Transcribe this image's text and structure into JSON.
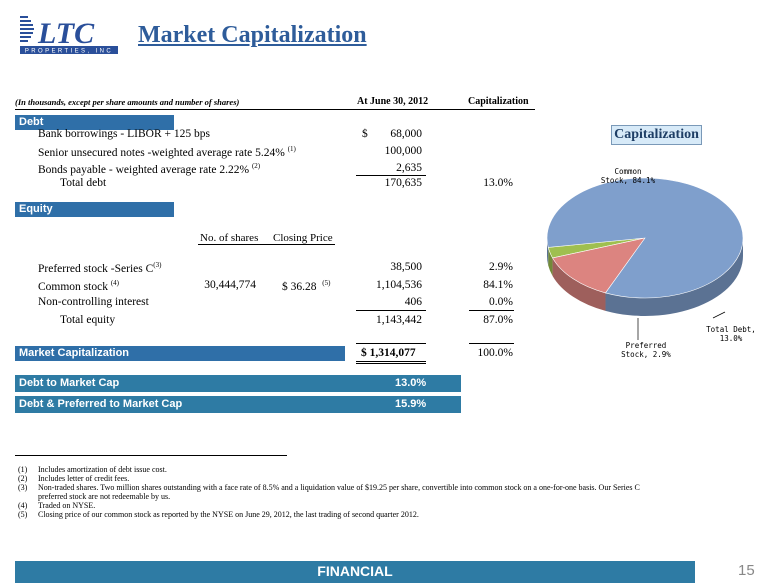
{
  "header": {
    "title": "Market Capitalization",
    "logo_text": "LTC",
    "logo_sub": "PROPERTIES, INC"
  },
  "table_header": {
    "note": "(In thousands, except per share amounts and number of shares)",
    "col_date": "At June 30, 2012",
    "col_cap": "Capitalization"
  },
  "debt": {
    "label": "Debt",
    "rows": [
      {
        "label": "Bank borrowings - LIBOR + 125 bps",
        "sup": "",
        "dollar": "$",
        "value": "68,000",
        "pct": ""
      },
      {
        "label": "Senior unsecured notes -weighted average rate 5.24%",
        "sup": "(1)",
        "dollar": "",
        "value": "100,000",
        "pct": ""
      },
      {
        "label": "Bonds payable  - weighted average rate 2.22%",
        "sup": "(2)",
        "dollar": "",
        "value": "2,635",
        "pct": ""
      }
    ],
    "total": {
      "label": "Total debt",
      "value": "170,635",
      "pct": "13.0%"
    }
  },
  "equity": {
    "label": "Equity",
    "col_shares": "No. of shares",
    "col_price": "Closing Price",
    "rows": [
      {
        "label": "Preferred stock -Series C",
        "sup": "(3)",
        "shares": "",
        "price": "",
        "price_sup": "",
        "value": "38,500",
        "pct": "2.9%"
      },
      {
        "label": "Common stock",
        "sup": "(4)",
        "shares": "30,444,774",
        "price": "$  36.28",
        "price_sup": "(5)",
        "value": "1,104,536",
        "pct": "84.1%"
      },
      {
        "label": "Non-controlling interest",
        "sup": "",
        "shares": "",
        "price": "",
        "price_sup": "",
        "value": "406",
        "pct": "0.0%"
      }
    ],
    "total": {
      "label": "Total equity",
      "value": "1,143,442",
      "pct": "87.0%"
    }
  },
  "market_cap": {
    "label": "Market Capitalization",
    "value": "$  1,314,077",
    "pct": "100.0%"
  },
  "ratios": [
    {
      "label": "Debt to Market Cap",
      "value": "13.0%"
    },
    {
      "label": "Debt & Preferred to Market Cap",
      "value": "15.9%"
    }
  ],
  "footnotes": [
    {
      "num": "(1)",
      "text": "Includes amortization of debt issue cost."
    },
    {
      "num": "(2)",
      "text": "Includes letter of credit fees."
    },
    {
      "num": "(3)",
      "text": "Non-traded shares.  Two million shares outstanding with a face rate of 8.5% and a liquidation value of $19.25 per share, convertible into common stock on a one-for-one basis.  Our Series C"
    },
    {
      "num": "",
      "text": "preferred stock are not redeemable by us."
    },
    {
      "num": "(4)",
      "text": "Traded on NYSE."
    },
    {
      "num": "(5)",
      "text": "Closing price of our common stock as reported by the NYSE on June 29, 2012, the last trading of second quarter 2012."
    }
  ],
  "footer": {
    "label": "FINANCIAL",
    "page": "15"
  },
  "chart_data": {
    "type": "pie",
    "title": "Capitalization",
    "slices": [
      {
        "name": "Common Stock",
        "label": "Common\nStock, 84.1%",
        "value": 84.1,
        "color": "#7f9fcc"
      },
      {
        "name": "Total Debt",
        "label": "Total Debt,\n13.0%",
        "value": 13.0,
        "color": "#dc8480"
      },
      {
        "name": "Preferred Stock",
        "label": "Preferred\nStock, 2.9%",
        "value": 2.9,
        "color": "#9fbf4f"
      }
    ]
  }
}
